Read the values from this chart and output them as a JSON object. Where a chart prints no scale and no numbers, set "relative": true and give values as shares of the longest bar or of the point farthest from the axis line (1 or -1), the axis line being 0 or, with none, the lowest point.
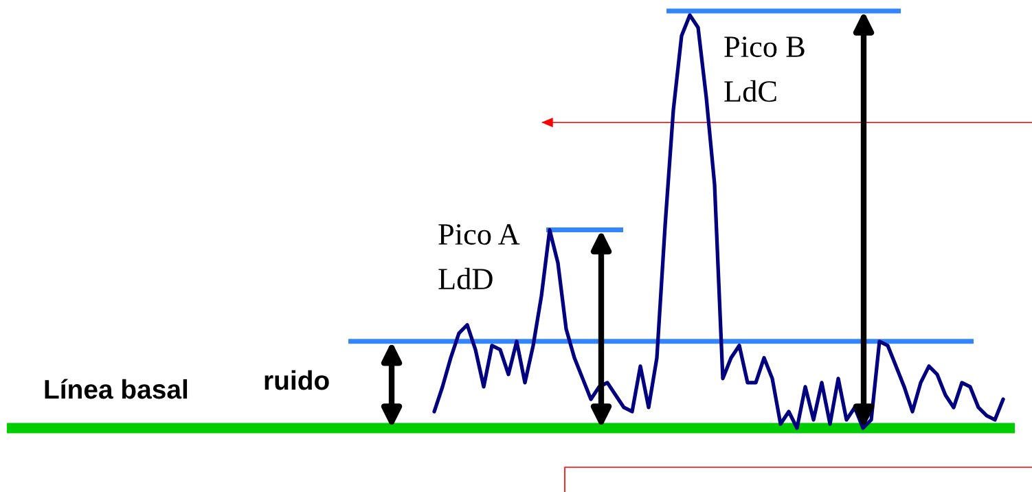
{
  "chart_data": {
    "type": "line",
    "relative": true,
    "marker": "none",
    "line_style": "solid",
    "categories": [
      null,
      null,
      null,
      null,
      null,
      null,
      null,
      null,
      null,
      null,
      null,
      null,
      null,
      null,
      null,
      null,
      null,
      null,
      null,
      null,
      null,
      null,
      null,
      null,
      null,
      null,
      null,
      null,
      null,
      null,
      null,
      null,
      null,
      null,
      null,
      null,
      null,
      null,
      null,
      null,
      null,
      null,
      null,
      null,
      null,
      null,
      null,
      null,
      null,
      null,
      null,
      null,
      null,
      null,
      null,
      null,
      null,
      null,
      null,
      null,
      null,
      null,
      null,
      null,
      null,
      null,
      null,
      null,
      null,
      null
    ],
    "series": [
      {
        "color": "#000080",
        "values": [
          0.04,
          0.1,
          0.17,
          0.23,
          0.25,
          0.19,
          0.1,
          0.2,
          0.19,
          0.13,
          0.21,
          0.11,
          0.2,
          0.32,
          0.48,
          0.4,
          0.24,
          0.17,
          0.12,
          0.07,
          0.1,
          0.11,
          0.08,
          0.05,
          0.04,
          0.15,
          0.05,
          0.17,
          0.49,
          0.77,
          0.95,
          1.0,
          0.97,
          0.8,
          0.59,
          0.12,
          0.17,
          0.2,
          0.11,
          0.11,
          0.17,
          0.12,
          0.01,
          0.04,
          0.0,
          0.1,
          0.02,
          0.11,
          0.01,
          0.12,
          0.02,
          0.05,
          0.0,
          0.02,
          0.21,
          0.2,
          0.15,
          0.1,
          0.04,
          0.11,
          0.15,
          0.13,
          0.08,
          0.05,
          0.11,
          0.1,
          0.05,
          0.03,
          0.02,
          0.07
        ]
      }
    ],
    "ref_lines": [
      {
        "axis": "y",
        "value": 0,
        "label": "Línea basal",
        "color": "#00cc00"
      },
      {
        "axis": "y",
        "value": 0.21,
        "label": "ruido",
        "color": "#3385ff"
      },
      {
        "axis": "y",
        "value": 0.48,
        "label": "LdD",
        "color": "#3385ff"
      },
      {
        "axis": "y",
        "value": 1.01,
        "label": "LdC",
        "color": "#3385ff"
      },
      {
        "axis": "y",
        "value": 0.74,
        "color": "#ff0000"
      }
    ],
    "annotations": [
      "Pico A",
      "Pico B"
    ]
  }
}
